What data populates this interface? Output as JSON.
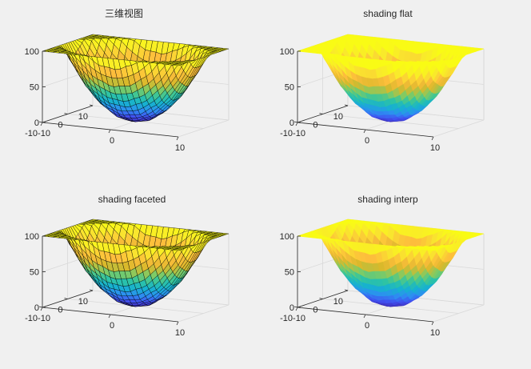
{
  "figure": {
    "background": "#f0f0f0",
    "axes_color": "#262626",
    "box_color": "#d9d9d9",
    "colormap": "parula",
    "colormap_stops": [
      "#3e26a8",
      "#4150f1",
      "#2d8ff1",
      "#17b1d0",
      "#2fc4a2",
      "#80cb64",
      "#d9b92b",
      "#fdbd3c",
      "#f9e82d",
      "#f9fb15"
    ]
  },
  "chart_data": [
    {
      "type": "surface",
      "title": "三维视图",
      "shading": "faceted",
      "function": "z = x^2 + y^2 + small ripple, x,y in [-10,10]",
      "xlim": [
        -10,
        10
      ],
      "ylim": [
        -10,
        10
      ],
      "zlim": [
        0,
        100
      ],
      "xticks": [
        "-10",
        "0",
        "10"
      ],
      "yticks": [
        "-10",
        "0",
        "10"
      ],
      "zticks": [
        "0",
        "50",
        "100"
      ],
      "grid": true
    },
    {
      "type": "surface",
      "title": "shading flat",
      "shading": "flat",
      "function": "z = x^2 + y^2 + small ripple, x,y in [-10,10]",
      "xlim": [
        -10,
        10
      ],
      "ylim": [
        -10,
        10
      ],
      "zlim": [
        0,
        100
      ],
      "xticks": [
        "-10",
        "0",
        "10"
      ],
      "yticks": [
        "-10",
        "0",
        "10"
      ],
      "zticks": [
        "0",
        "50",
        "100"
      ],
      "grid": true
    },
    {
      "type": "surface",
      "title": "shading faceted",
      "shading": "faceted",
      "function": "z = x^2 + y^2 + small ripple, x,y in [-10,10]",
      "xlim": [
        -10,
        10
      ],
      "ylim": [
        -10,
        10
      ],
      "zlim": [
        0,
        100
      ],
      "xticks": [
        "-10",
        "0",
        "10"
      ],
      "yticks": [
        "-10",
        "0",
        "10"
      ],
      "zticks": [
        "0",
        "50",
        "100"
      ],
      "grid": true
    },
    {
      "type": "surface",
      "title": "shading interp",
      "shading": "interp",
      "function": "z = x^2 + y^2 + small ripple, x,y in [-10,10]",
      "xlim": [
        -10,
        10
      ],
      "ylim": [
        -10,
        10
      ],
      "zlim": [
        0,
        100
      ],
      "xticks": [
        "-10",
        "0",
        "10"
      ],
      "yticks": [
        "-10",
        "0",
        "10"
      ],
      "zticks": [
        "0",
        "50",
        "100"
      ],
      "grid": true
    }
  ]
}
